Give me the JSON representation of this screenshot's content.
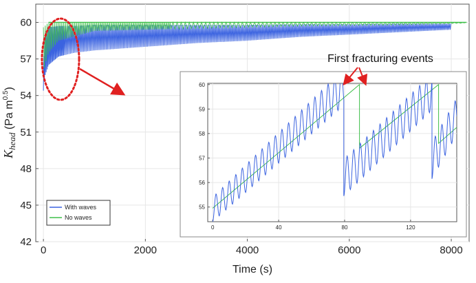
{
  "chart_data": [
    {
      "id": "main",
      "type": "line",
      "xlabel": "Time (s)",
      "ylabel": {
        "main": "K",
        "sub": "head",
        "unit": " (Pa m",
        "unit_exp": "0.5",
        "unit_close": ")"
      },
      "xlim": [
        -150,
        8350
      ],
      "ylim": [
        42,
        61.5
      ],
      "xticks": [
        0,
        2000,
        4000,
        6000,
        8000
      ],
      "yticks": [
        42,
        45,
        48,
        51,
        54,
        57,
        60
      ],
      "grid": true,
      "legend": {
        "position": "bottom-left"
      },
      "series": [
        {
          "name": "With waves",
          "color": "#3b63e0",
          "render": "oscillating-band",
          "x": [
            0,
            30,
            100,
            300,
            600,
            1000,
            2000,
            3000,
            4000,
            5000,
            6000,
            7000,
            8000
          ],
          "upper": [
            56.5,
            59.0,
            59.6,
            59.7,
            59.7,
            59.8,
            59.8,
            59.8,
            59.8,
            59.85,
            59.85,
            59.9,
            59.9
          ],
          "lower": [
            54.4,
            55.6,
            56.5,
            57.2,
            57.5,
            57.7,
            58.0,
            58.3,
            58.5,
            58.8,
            59.0,
            59.2,
            59.4
          ]
        },
        {
          "name": "No waves",
          "color": "#3fbf4a",
          "render": "sawtooth-band",
          "x": [
            0,
            100,
            300,
            1000,
            3000,
            5000,
            7000,
            8000,
            8300
          ],
          "upper": [
            59.6,
            60.0,
            60.0,
            60.0,
            60.0,
            60.0,
            60.0,
            60.0,
            60.0
          ],
          "lower": [
            56.0,
            57.5,
            58.5,
            59.3,
            59.5,
            59.7,
            59.8,
            59.9,
            59.95
          ]
        }
      ]
    },
    {
      "id": "inset",
      "type": "line",
      "xlim": [
        -3,
        148
      ],
      "ylim": [
        54.4,
        60.05
      ],
      "xticks": [
        0,
        40,
        80,
        120
      ],
      "yticks": [
        55,
        56,
        57,
        58,
        59,
        60
      ],
      "grid": true,
      "series": [
        {
          "name": "With waves",
          "color": "#3b63e0",
          "render": "sawtooth-oscillation",
          "segments": [
            {
              "x0": 0,
              "x1": 79.5,
              "y0": 54.9,
              "y1": 59.9
            },
            {
              "x0": 79.5,
              "x1": 133,
              "y0": 56.2,
              "y1": 59.7
            },
            {
              "x0": 133,
              "x1": 148,
              "y0": 56.9,
              "y1": 58.7
            }
          ],
          "amp": [
            0.5,
            0.75
          ],
          "period": 4.0
        },
        {
          "name": "No waves",
          "color": "#3fbf4a",
          "render": "sawtooth",
          "segments": [
            {
              "x0": 0,
              "x1": 89,
              "y0": 54.95,
              "y1": 60.0
            },
            {
              "x0": 89,
              "x1": 137,
              "y0": 57.4,
              "y1": 60.0
            },
            {
              "x0": 137,
              "x1": 148,
              "y0": 57.6,
              "y1": 58.25
            }
          ]
        }
      ]
    }
  ],
  "legend": {
    "items": [
      {
        "label": "With waves",
        "color": "#3b63e0"
      },
      {
        "label": "No waves",
        "color": "#3fbf4a"
      }
    ]
  },
  "annotations": {
    "first_fracturing": "First fracturing events",
    "ellipse_color": "#e02020",
    "arrow_color": "#e02020"
  }
}
